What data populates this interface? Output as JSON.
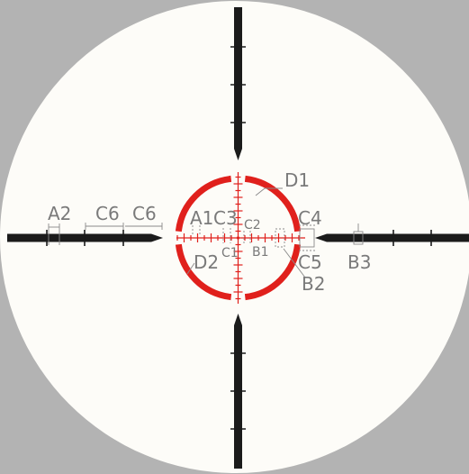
{
  "colors": {
    "background": "#b3b3b3",
    "field": "#fdfcf8",
    "post": "#1b1b1b",
    "reticle_red": "#e0201c",
    "callout": "#7a7a7a"
  },
  "labels": {
    "A1": "A1",
    "A2": "A2",
    "B1": "B1",
    "B2": "B2",
    "B3": "B3",
    "C1": "C1",
    "C2": "C2",
    "C3": "C3",
    "C4": "C4",
    "C5": "C5",
    "C6_left": "C6",
    "C6_right": "C6",
    "D1": "D1",
    "D2": "D2"
  }
}
